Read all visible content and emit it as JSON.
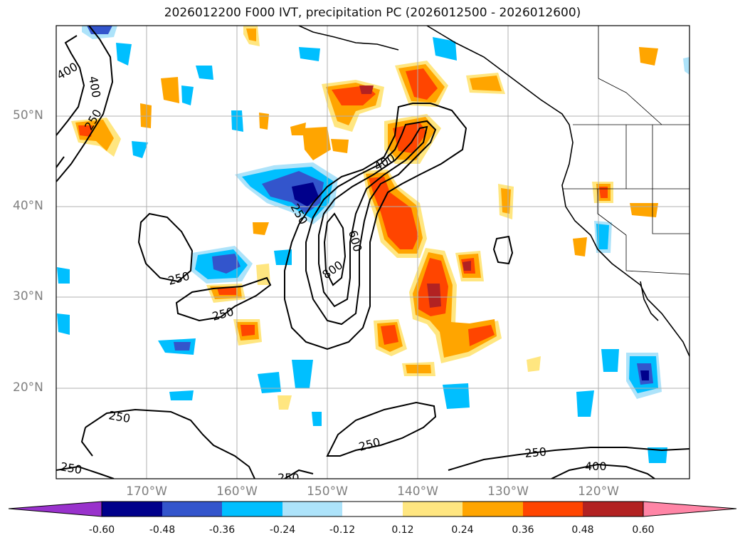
{
  "title": "2026012200 F000 IVT, precipitation PC (2026012500 - 2026012600)",
  "map": {
    "extent": {
      "lon_min": -180,
      "lon_max": -110,
      "lat_min": 10,
      "lat_max": 60
    },
    "lat_ticks": [
      {
        "lat": 50,
        "label": "50°N"
      },
      {
        "lat": 40,
        "label": "40°N"
      },
      {
        "lat": 30,
        "label": "30°N"
      },
      {
        "lat": 20,
        "label": "20°N"
      }
    ],
    "lon_ticks": [
      {
        "lon": -170,
        "label": "170°W"
      },
      {
        "lon": -160,
        "label": "160°W"
      },
      {
        "lon": -150,
        "label": "150°W"
      },
      {
        "lon": -140,
        "label": "140°W"
      },
      {
        "lon": -130,
        "label": "130°W"
      },
      {
        "lon": -120,
        "label": "120°W"
      }
    ],
    "contour_labels": [
      "400",
      "400",
      "250",
      "250",
      "400",
      "600",
      "800",
      "250",
      "250",
      "250",
      "250",
      "250",
      "250",
      "400",
      "250"
    ]
  },
  "colorbar": {
    "colors": [
      "#9932CC",
      "#00008B",
      "#3355CC",
      "#00BFFF",
      "#ADE3FA",
      "#FFFFFF",
      "#FFE680",
      "#FFA500",
      "#FF4500",
      "#B22222",
      "#FF85A6"
    ],
    "ticks": [
      "-0.60",
      "-0.48",
      "-0.36",
      "-0.24",
      "-0.12",
      "0.12",
      "0.24",
      "0.36",
      "0.48",
      "0.60"
    ]
  },
  "colors": {
    "neg_light": "#ADE3FA",
    "neg_mid": "#00BFFF",
    "neg_dark": "#3355CC",
    "neg_deep": "#00008B",
    "pos_light": "#FFE680",
    "pos_mid": "#FFA500",
    "pos_dark": "#FF4500",
    "pos_deep": "#B22222",
    "grid": "#b0b0b0",
    "contour": "#000000"
  }
}
